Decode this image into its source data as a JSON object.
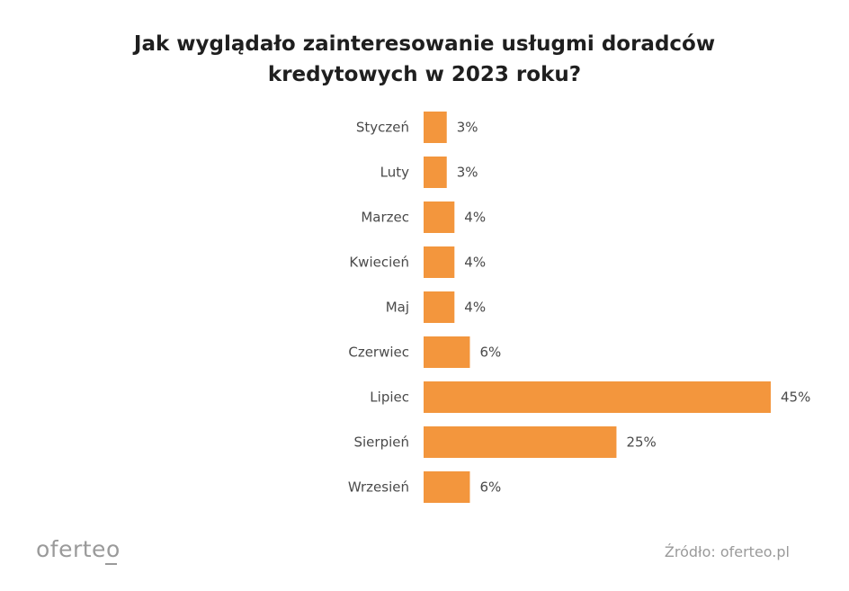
{
  "chart_data": {
    "type": "bar",
    "orientation": "horizontal",
    "title": "Jak wyglądało zainteresowanie usługmi doradców kredytowych w 2023 roku?",
    "title_lines": [
      "Jak wyglądało zainteresowanie usługmi doradców",
      "kredytowych w 2023 roku?"
    ],
    "categories": [
      "Styczeń",
      "Luty",
      "Marzec",
      "Kwiecień",
      "Maj",
      "Czerwiec",
      "Lipiec",
      "Sierpień",
      "Wrzesień"
    ],
    "values": [
      3,
      3,
      4,
      4,
      4,
      6,
      45,
      25,
      6
    ],
    "value_labels": [
      "3%",
      "3%",
      "4%",
      "4%",
      "4%",
      "6%",
      "45%",
      "25%",
      "6%"
    ],
    "unit": "%",
    "xlim": [
      0,
      45
    ],
    "grid": false,
    "bar_color": "#f3963d"
  },
  "footer": {
    "logo": "oferteo",
    "source": "Źródło: oferteo.pl"
  }
}
